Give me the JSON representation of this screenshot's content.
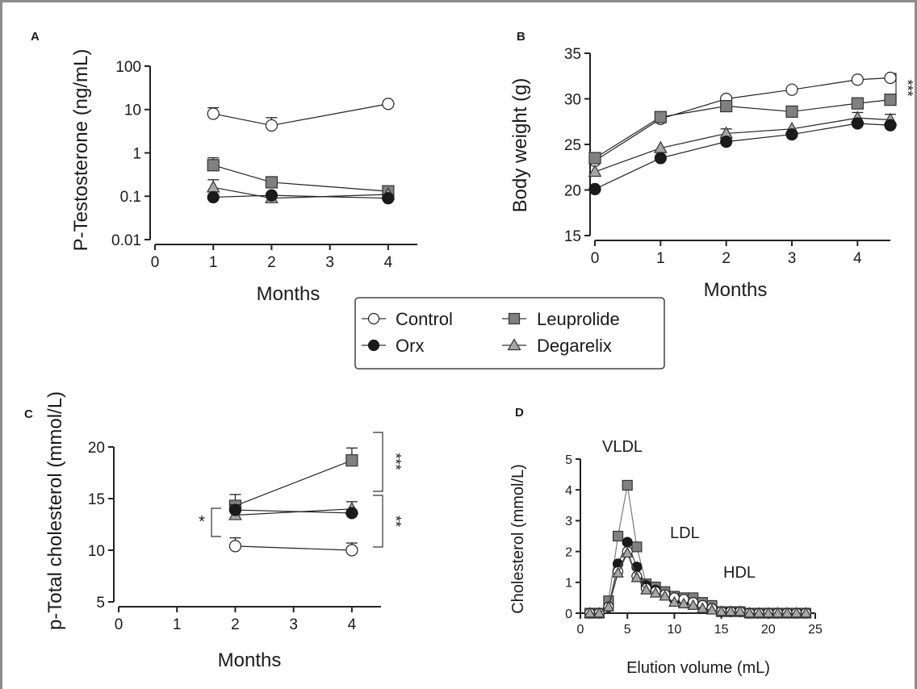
{
  "legend": {
    "items": [
      {
        "label": "Control",
        "marker": "circle",
        "fill": "#ffffff"
      },
      {
        "label": "Orx",
        "marker": "circle",
        "fill": "#1a1a1a"
      },
      {
        "label": "Leuprolide",
        "marker": "square",
        "fill": "#808080"
      },
      {
        "label": "Degarelix",
        "marker": "triangle",
        "fill": "#a6a6a6"
      }
    ]
  },
  "chart_data": [
    {
      "panel": "A",
      "type": "line",
      "xlabel": "Months",
      "ylabel": "P-Testosterone (ng/mL)",
      "yscale": "log",
      "xlim": [
        0,
        4.5
      ],
      "ylim": [
        0.01,
        100
      ],
      "xticks": [
        0,
        1,
        2,
        3,
        4
      ],
      "xtick_labels": [
        "0",
        "1",
        "2",
        "3",
        "4"
      ],
      "yticks": [
        0.01,
        0.1,
        1,
        10,
        100
      ],
      "ytick_labels": [
        "0.01",
        "0.1",
        "1",
        "10",
        "100"
      ],
      "series": [
        {
          "name": "Control",
          "x": [
            1,
            2,
            4
          ],
          "y": [
            8,
            4.3,
            13.5
          ],
          "err": [
            3,
            2.2,
            0
          ]
        },
        {
          "name": "Leuprolide",
          "x": [
            1,
            2,
            4
          ],
          "y": [
            0.52,
            0.21,
            0.13
          ],
          "err": [
            0.25,
            0,
            0
          ]
        },
        {
          "name": "Degarelix",
          "x": [
            1,
            2,
            4
          ],
          "y": [
            0.16,
            0.09,
            0.11
          ],
          "err": [
            0.08,
            0,
            0
          ]
        },
        {
          "name": "Orx",
          "x": [
            1,
            2,
            4
          ],
          "y": [
            0.095,
            0.105,
            0.09
          ],
          "err": [
            0,
            0,
            0
          ]
        }
      ],
      "annotations": []
    },
    {
      "panel": "B",
      "type": "line",
      "xlabel": "Months",
      "ylabel": "Body weight (g)",
      "xlim": [
        0,
        4.5
      ],
      "ylim": [
        15,
        35
      ],
      "xticks": [
        0,
        1,
        2,
        3,
        4
      ],
      "xtick_labels": [
        "0",
        "1",
        "2",
        "3",
        "4"
      ],
      "yticks": [
        15,
        20,
        25,
        30,
        35
      ],
      "ytick_labels": [
        "15",
        "20",
        "25",
        "30",
        "35"
      ],
      "series": [
        {
          "name": "Control",
          "x": [
            0,
            1,
            2,
            3,
            4,
            4.5
          ],
          "y": [
            23.2,
            27.8,
            30.0,
            31.0,
            32.1,
            32.3
          ],
          "err": [
            0,
            0,
            0,
            0,
            0,
            0
          ]
        },
        {
          "name": "Leuprolide",
          "x": [
            0,
            1,
            2,
            3,
            4,
            4.5
          ],
          "y": [
            23.5,
            28.0,
            29.2,
            28.6,
            29.5,
            29.9
          ],
          "err": [
            0,
            0,
            0,
            0,
            0,
            0
          ]
        },
        {
          "name": "Degarelix",
          "x": [
            0,
            1,
            2,
            3,
            4,
            4.5
          ],
          "y": [
            22.0,
            24.6,
            26.2,
            26.7,
            27.9,
            27.7
          ],
          "err": [
            0,
            0,
            0.5,
            0,
            0.6,
            0.6
          ]
        },
        {
          "name": "Orx",
          "x": [
            0,
            1,
            2,
            3,
            4,
            4.5
          ],
          "y": [
            20.1,
            23.5,
            25.3,
            26.1,
            27.3,
            27.1
          ],
          "err": [
            0,
            0,
            0,
            0,
            0,
            0
          ]
        }
      ],
      "annotations": [
        {
          "text": "***",
          "y1": 32.3,
          "y2": 29.9
        }
      ]
    },
    {
      "panel": "C",
      "type": "line",
      "xlabel": "Months",
      "ylabel": "p-Total cholesterol (mmol/L)",
      "xlim": [
        0,
        4.5
      ],
      "ylim": [
        5,
        20
      ],
      "xticks": [
        0,
        1,
        2,
        3,
        4
      ],
      "xtick_labels": [
        "0",
        "1",
        "2",
        "3",
        "4"
      ],
      "yticks": [
        5,
        10,
        15,
        20
      ],
      "ytick_labels": [
        "5",
        "10",
        "15",
        "20"
      ],
      "series": [
        {
          "name": "Control",
          "x": [
            2,
            4
          ],
          "y": [
            10.4,
            10.0
          ],
          "err": [
            0.8,
            0.7
          ]
        },
        {
          "name": "Leuprolide",
          "x": [
            2,
            4
          ],
          "y": [
            14.3,
            18.7
          ],
          "err": [
            1.1,
            1.2
          ]
        },
        {
          "name": "Degarelix",
          "x": [
            2,
            4
          ],
          "y": [
            13.4,
            14.0
          ],
          "err": [
            0,
            0.7
          ]
        },
        {
          "name": "Orx",
          "x": [
            2,
            4
          ],
          "y": [
            13.9,
            13.6
          ],
          "err": [
            0.5,
            0
          ]
        }
      ],
      "annotations": [
        {
          "text": "***",
          "y1": 18.7,
          "y2": 14.2
        },
        {
          "text": "**",
          "y1": 14.0,
          "y2": 10.0
        },
        {
          "text": "*",
          "y1": 14.0,
          "y2": 10.4
        }
      ]
    },
    {
      "panel": "D",
      "type": "line",
      "xlabel": "Elution volume (mL)",
      "ylabel": "Cholesterol (mmol/L)",
      "xlim": [
        0,
        25
      ],
      "ylim": [
        0,
        5
      ],
      "xticks": [
        0,
        5,
        10,
        15,
        20,
        25
      ],
      "xtick_labels": [
        "0",
        "5",
        "10",
        "15",
        "20",
        "25"
      ],
      "yticks": [
        0,
        1,
        2,
        3,
        4,
        5
      ],
      "ytick_labels": [
        "0",
        "1",
        "2",
        "3",
        "4",
        "5"
      ],
      "series": [
        {
          "name": "Leuprolide",
          "x": [
            1,
            2,
            3,
            4,
            5,
            6,
            7,
            8,
            9,
            10,
            11,
            12,
            13,
            14,
            15,
            16,
            17,
            18,
            19,
            20,
            21,
            22,
            23,
            24
          ],
          "y": [
            0,
            0,
            0.4,
            2.5,
            4.15,
            2.15,
            0.95,
            0.85,
            0.7,
            0.55,
            0.5,
            0.5,
            0.35,
            0.25,
            0.05,
            0.05,
            0.05,
            0,
            0,
            0,
            0,
            0,
            0,
            0
          ],
          "err": []
        },
        {
          "name": "Orx",
          "x": [
            1,
            2,
            3,
            4,
            5,
            6,
            7,
            8,
            9,
            10,
            11,
            12,
            13,
            14,
            15,
            16,
            17,
            18,
            19,
            20,
            21,
            22,
            23,
            24
          ],
          "y": [
            0,
            0,
            0.2,
            1.6,
            2.3,
            1.5,
            0.9,
            0.75,
            0.6,
            0.45,
            0.4,
            0.35,
            0.25,
            0.15,
            0.05,
            0.05,
            0.05,
            0,
            0,
            0,
            0,
            0,
            0,
            0
          ],
          "err": []
        },
        {
          "name": "Control",
          "x": [
            1,
            2,
            3,
            4,
            5,
            6,
            7,
            8,
            9,
            10,
            11,
            12,
            13,
            14,
            15,
            16,
            17,
            18,
            19,
            20,
            21,
            22,
            23,
            24
          ],
          "y": [
            0,
            0,
            0.2,
            1.35,
            2.0,
            1.2,
            0.8,
            0.7,
            0.6,
            0.5,
            0.45,
            0.35,
            0.25,
            0.15,
            0.05,
            0.05,
            0.05,
            0,
            0,
            0,
            0,
            0,
            0,
            0
          ],
          "err": []
        },
        {
          "name": "Degarelix",
          "x": [
            1,
            2,
            3,
            4,
            5,
            6,
            7,
            8,
            9,
            10,
            11,
            12,
            13,
            14,
            15,
            16,
            17,
            18,
            19,
            20,
            21,
            22,
            23,
            24
          ],
          "y": [
            0,
            0,
            0.2,
            1.3,
            1.95,
            1.15,
            0.75,
            0.65,
            0.55,
            0.35,
            0.3,
            0.25,
            0.15,
            0.1,
            0.05,
            0.05,
            0.05,
            0,
            0,
            0,
            0,
            0,
            0,
            0
          ],
          "err": []
        }
      ],
      "annotations": [
        {
          "text": "VLDL"
        },
        {
          "text": "LDL"
        },
        {
          "text": "HDL"
        }
      ]
    }
  ]
}
